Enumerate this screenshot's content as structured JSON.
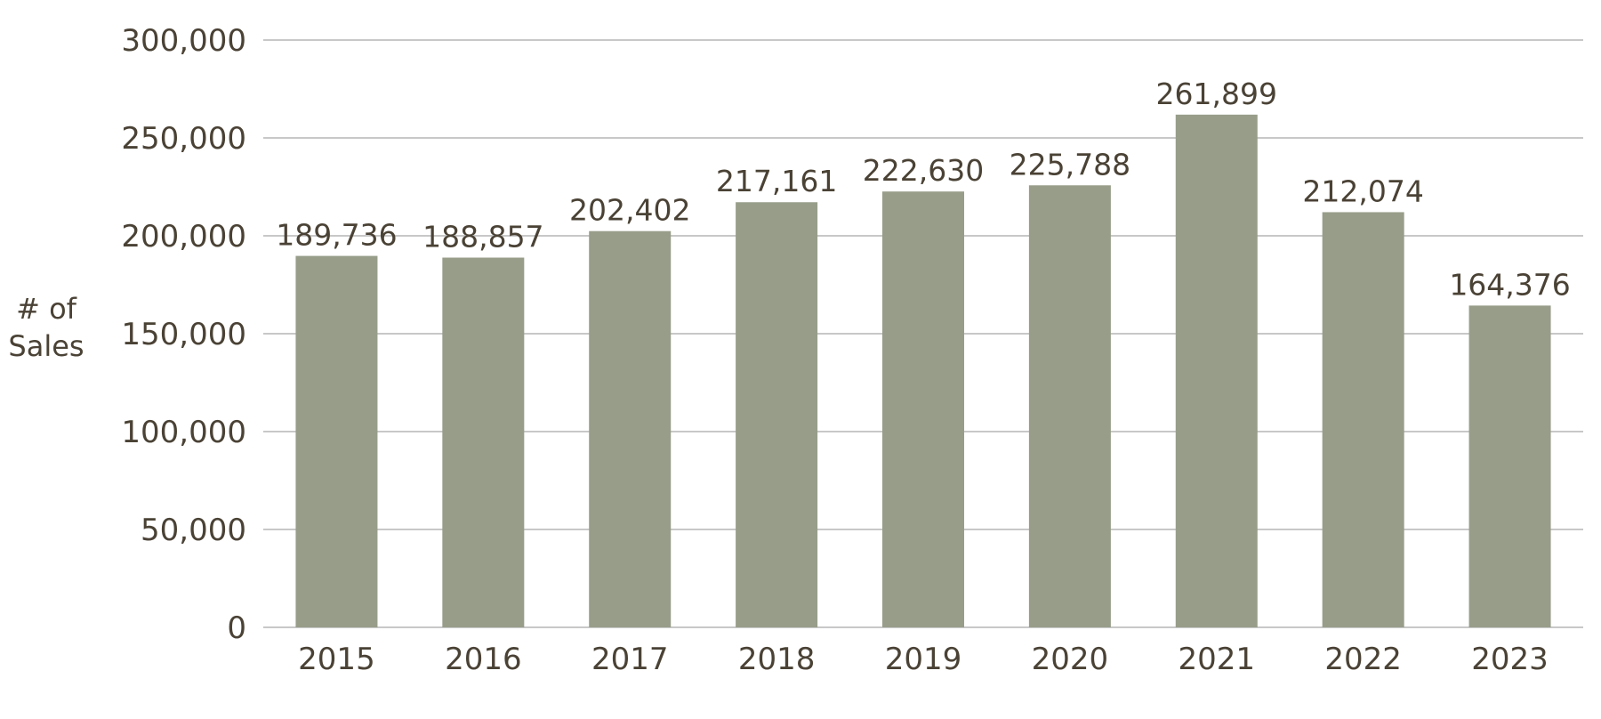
{
  "chart_data": {
    "type": "bar",
    "title": "",
    "xlabel": "",
    "ylabel": [
      "# of",
      "Sales"
    ],
    "categories": [
      "2015",
      "2016",
      "2017",
      "2018",
      "2019",
      "2020",
      "2021",
      "2022",
      "2023"
    ],
    "values": [
      189736,
      188857,
      202402,
      217161,
      222630,
      225788,
      261899,
      212074,
      164376
    ],
    "data_labels": [
      "189,736",
      "188,857",
      "202,402",
      "217,161",
      "222,630",
      "225,788",
      "261,899",
      "212,074",
      "164,376"
    ],
    "ylim": [
      0,
      300000
    ],
    "yticks": [
      0,
      50000,
      100000,
      150000,
      200000,
      250000,
      300000
    ],
    "ytick_labels": [
      "0",
      "50,000",
      "100,000",
      "150,000",
      "200,000",
      "250,000",
      "300,000"
    ],
    "grid": true,
    "legend": "none",
    "colors": {
      "bar": "#979d89",
      "grid": "#c8c8c8",
      "text": "#4a4235"
    }
  }
}
